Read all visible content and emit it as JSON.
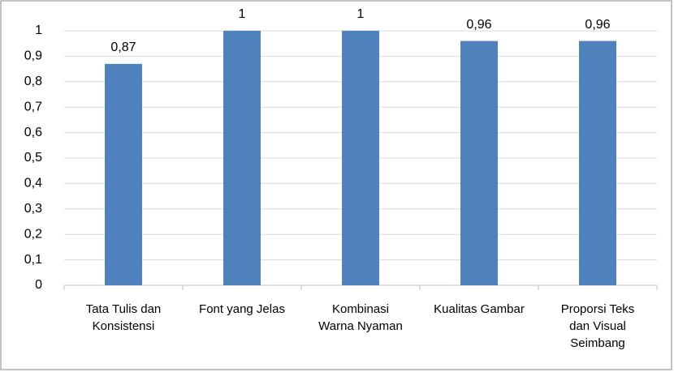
{
  "chart_data": {
    "type": "bar",
    "categories": [
      "Tata Tulis dan Konsistensi",
      "Font yang Jelas",
      "Kombinasi Warna Nyaman",
      "Kualitas Gambar",
      "Proporsi Teks dan Visual Seimbang"
    ],
    "values": [
      0.87,
      1,
      1,
      0.96,
      0.96
    ],
    "value_labels": [
      "0,87",
      "1",
      "1",
      "0,96",
      "0,96"
    ],
    "color": "#4f81bd",
    "ylim": [
      0,
      1
    ],
    "yticks": [
      0,
      {
        "value": 0.1,
        "label": "0,1"
      },
      {
        "value": 0.2,
        "label": "0,2"
      },
      {
        "value": 0.3,
        "label": "0,3"
      },
      {
        "value": 0.4,
        "label": "0,4"
      },
      {
        "value": 0.5,
        "label": "0,5"
      },
      {
        "value": 0.6,
        "label": "0,6"
      },
      {
        "value": 0.7,
        "label": "0,7"
      },
      {
        "value": 0.8,
        "label": "0,8"
      },
      {
        "value": 0.9,
        "label": "0,9"
      },
      1
    ],
    "grid": true
  }
}
